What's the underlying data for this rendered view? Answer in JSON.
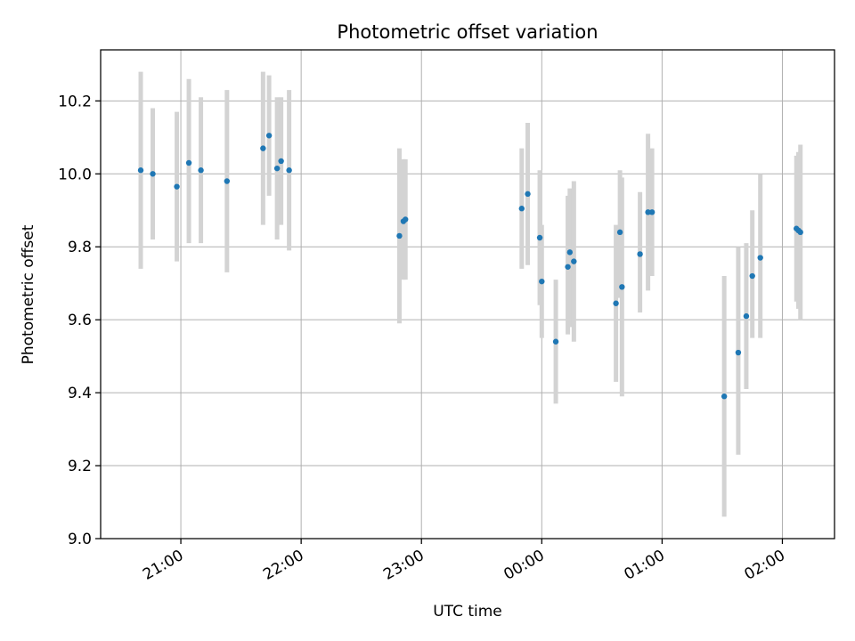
{
  "chart_data": {
    "type": "scatter",
    "title": "Photometric offset variation",
    "xlabel": "UTC time",
    "ylabel": "Photometric offset",
    "grid": true,
    "legend": "none",
    "xlim": [
      "20:20",
      "02:26"
    ],
    "ylim": [
      9.0,
      10.34
    ],
    "x_ticks": [
      "21:00",
      "22:00",
      "23:00",
      "00:00",
      "01:00",
      "02:00"
    ],
    "y_ticks": [
      "9.0",
      "9.2",
      "9.4",
      "9.6",
      "9.8",
      "10.0",
      "10.2"
    ],
    "colors": {
      "marker": "#1f77b4",
      "errorbar": "#d3d3d3"
    },
    "points": [
      {
        "t": "20:40",
        "y": 10.01,
        "lo": 9.74,
        "hi": 10.28
      },
      {
        "t": "20:46",
        "y": 10.0,
        "lo": 9.82,
        "hi": 10.18
      },
      {
        "t": "20:58",
        "y": 9.965,
        "lo": 9.76,
        "hi": 10.17
      },
      {
        "t": "21:04",
        "y": 10.03,
        "lo": 9.81,
        "hi": 10.26
      },
      {
        "t": "21:10",
        "y": 10.01,
        "lo": 9.81,
        "hi": 10.21
      },
      {
        "t": "21:23",
        "y": 9.98,
        "lo": 9.73,
        "hi": 10.23
      },
      {
        "t": "21:41",
        "y": 10.07,
        "lo": 9.86,
        "hi": 10.28
      },
      {
        "t": "21:44",
        "y": 10.105,
        "lo": 9.94,
        "hi": 10.27
      },
      {
        "t": "21:48",
        "y": 10.015,
        "lo": 9.82,
        "hi": 10.21
      },
      {
        "t": "21:50",
        "y": 10.035,
        "lo": 9.86,
        "hi": 10.21
      },
      {
        "t": "21:54",
        "y": 10.01,
        "lo": 9.79,
        "hi": 10.23
      },
      {
        "t": "22:49",
        "y": 9.83,
        "lo": 9.59,
        "hi": 10.07
      },
      {
        "t": "22:51",
        "y": 9.87,
        "lo": 9.71,
        "hi": 10.04
      },
      {
        "t": "22:52",
        "y": 9.875,
        "lo": 9.71,
        "hi": 10.04
      },
      {
        "t": "23:50",
        "y": 9.905,
        "lo": 9.74,
        "hi": 10.07
      },
      {
        "t": "23:53",
        "y": 9.945,
        "lo": 9.75,
        "hi": 10.14
      },
      {
        "t": "23:59",
        "y": 9.825,
        "lo": 9.64,
        "hi": 10.01
      },
      {
        "t": "00:00",
        "y": 9.705,
        "lo": 9.55,
        "hi": 9.86
      },
      {
        "t": "00:07",
        "y": 9.54,
        "lo": 9.37,
        "hi": 9.71
      },
      {
        "t": "00:13",
        "y": 9.745,
        "lo": 9.56,
        "hi": 9.94
      },
      {
        "t": "00:14",
        "y": 9.785,
        "lo": 9.58,
        "hi": 9.96
      },
      {
        "t": "00:16",
        "y": 9.76,
        "lo": 9.54,
        "hi": 9.98
      },
      {
        "t": "00:37",
        "y": 9.645,
        "lo": 9.43,
        "hi": 9.86
      },
      {
        "t": "00:39",
        "y": 9.84,
        "lo": 9.66,
        "hi": 10.01
      },
      {
        "t": "00:40",
        "y": 9.69,
        "lo": 9.39,
        "hi": 9.99
      },
      {
        "t": "00:49",
        "y": 9.78,
        "lo": 9.62,
        "hi": 9.95
      },
      {
        "t": "00:53",
        "y": 9.895,
        "lo": 9.68,
        "hi": 10.11
      },
      {
        "t": "00:55",
        "y": 9.895,
        "lo": 9.72,
        "hi": 10.07
      },
      {
        "t": "01:31",
        "y": 9.39,
        "lo": 9.06,
        "hi": 9.72
      },
      {
        "t": "01:38",
        "y": 9.51,
        "lo": 9.23,
        "hi": 9.8
      },
      {
        "t": "01:42",
        "y": 9.61,
        "lo": 9.41,
        "hi": 9.81
      },
      {
        "t": "01:45",
        "y": 9.72,
        "lo": 9.55,
        "hi": 9.9
      },
      {
        "t": "01:49",
        "y": 9.77,
        "lo": 9.55,
        "hi": 10.0
      },
      {
        "t": "02:07",
        "y": 9.85,
        "lo": 9.65,
        "hi": 10.05
      },
      {
        "t": "02:08",
        "y": 9.845,
        "lo": 9.63,
        "hi": 10.06
      },
      {
        "t": "02:09",
        "y": 9.84,
        "lo": 9.6,
        "hi": 10.08
      }
    ]
  }
}
